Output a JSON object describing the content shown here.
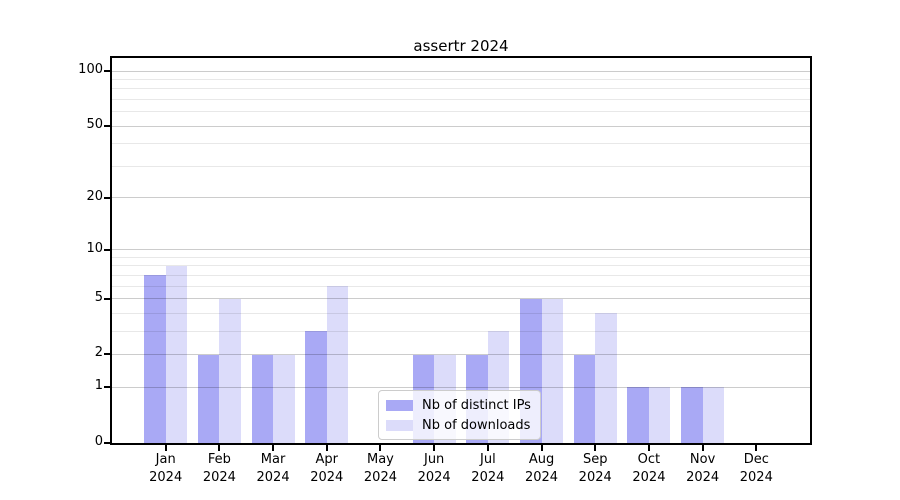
{
  "title": "assertr 2024",
  "chart_data": {
    "type": "bar",
    "title": "assertr 2024",
    "categories": [
      "Jan",
      "Feb",
      "Mar",
      "Apr",
      "May",
      "Jun",
      "Jul",
      "Aug",
      "Sep",
      "Oct",
      "Nov",
      "Dec"
    ],
    "x_sublabel": "2024",
    "series": [
      {
        "name": "Nb of distinct IPs",
        "color": "#a9a9f5",
        "values": [
          7,
          2,
          2,
          3,
          0,
          2,
          2,
          5,
          2,
          1,
          1,
          0
        ]
      },
      {
        "name": "Nb of downloads",
        "color": "#dcdcfa",
        "values": [
          8,
          5,
          2,
          6,
          0,
          2,
          3,
          5,
          4,
          1,
          1,
          0
        ]
      }
    ],
    "yscale": "log1p",
    "ylim": [
      0,
      118
    ],
    "yticks": [
      0,
      1,
      2,
      5,
      10,
      20,
      50,
      100
    ],
    "minor_yticks": [
      3,
      4,
      6,
      7,
      8,
      9,
      30,
      40,
      60,
      70,
      80,
      90
    ],
    "grid": true,
    "legend_position": "lower center"
  },
  "colors": {
    "distinct_ips_bar": "#a9a9f5",
    "downloads_bar": "#dcdcfa",
    "axis": "#000000",
    "grid_major": "#cccccc",
    "grid_minor": "#e8e8e8",
    "legend_border": "#cccccc",
    "background": "#ffffff"
  }
}
